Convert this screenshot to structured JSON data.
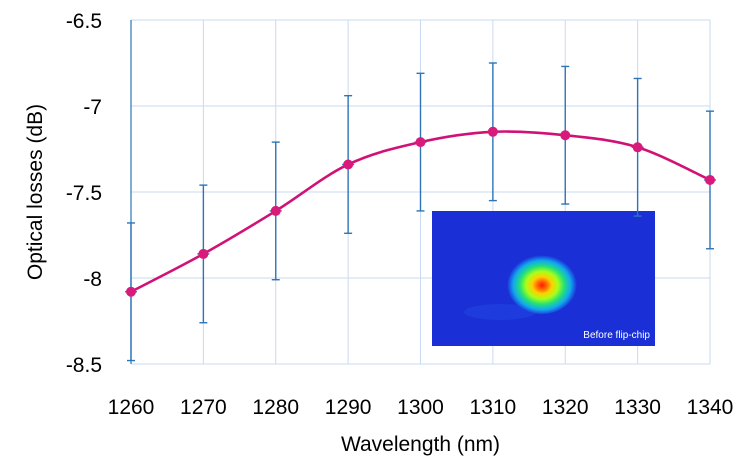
{
  "chart_data": {
    "type": "line",
    "xlabel": "Wavelength (nm)",
    "ylabel": "Optical losses (dB)",
    "xlim": [
      1260,
      1340
    ],
    "ylim": [
      -8.5,
      -6.5
    ],
    "x_ticks": [
      "1260",
      "1270",
      "1280",
      "1290",
      "1300",
      "1310",
      "1320",
      "1330",
      "1340"
    ],
    "y_ticks": [
      "-6.5",
      "-7",
      "-7.5",
      "-8",
      "-8.5"
    ],
    "grid": true,
    "smooth": true,
    "series": [
      {
        "x": [
          1260,
          1270,
          1280,
          1290,
          1300,
          1310,
          1320,
          1330,
          1340
        ],
        "y": [
          -8.08,
          -7.86,
          -7.61,
          -7.34,
          -7.21,
          -7.15,
          -7.17,
          -7.24,
          -7.43
        ],
        "error": [
          0.4,
          0.4,
          0.4,
          0.4,
          0.4,
          0.4,
          0.4,
          0.4,
          0.4
        ],
        "line_color": "#d01277",
        "marker_color": "#d81b7a",
        "error_color": "#2e75b6"
      }
    ],
    "inset": {
      "label": "Before flip-chip"
    }
  },
  "colors": {
    "grid": "#c9daf0",
    "axis": "#2e75b6",
    "inset_bg": "#1a2fd6"
  }
}
